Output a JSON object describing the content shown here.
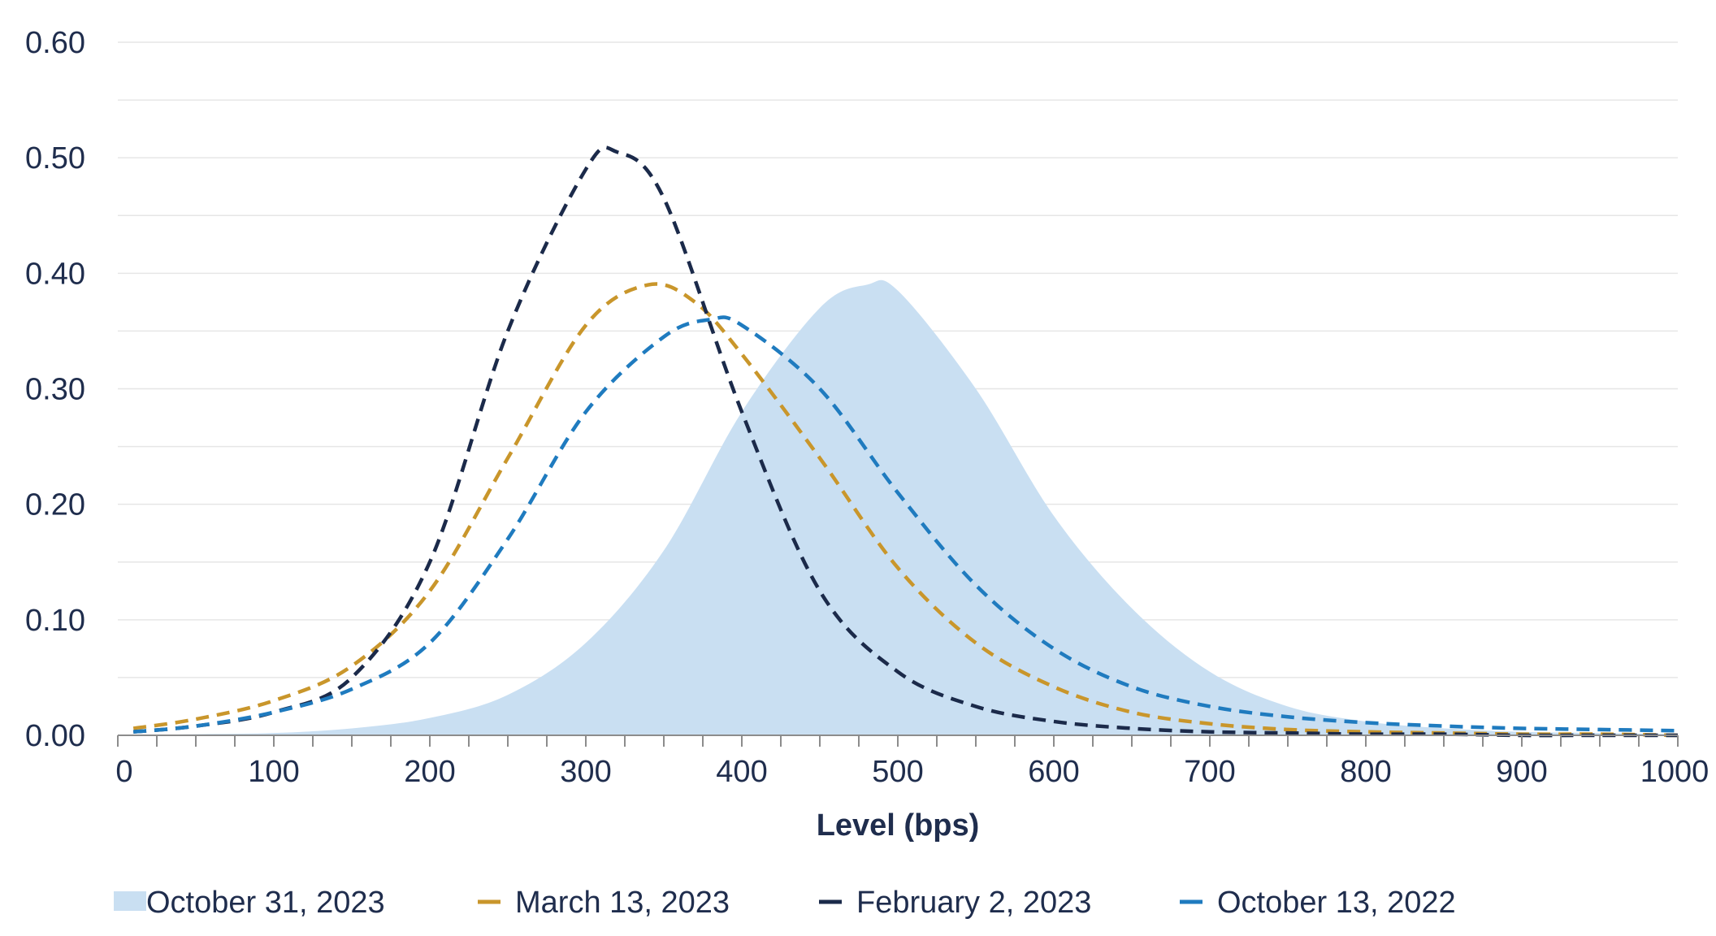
{
  "chart_data": {
    "type": "area",
    "xlabel": "Level (bps)",
    "ylabel": "",
    "xlim": [
      0,
      1000
    ],
    "ylim": [
      0,
      0.6
    ],
    "x_ticks": [
      "0",
      "100",
      "200",
      "300",
      "400",
      "500",
      "600",
      "700",
      "800",
      "900",
      "1000"
    ],
    "y_ticks": [
      "0.00",
      "0.10",
      "0.20",
      "0.30",
      "0.40",
      "0.50",
      "0.60"
    ],
    "grid": true,
    "legend_position": "bottom",
    "series": [
      {
        "name": "October 31, 2023",
        "style": "filled-area",
        "color": "#c9dff2",
        "x": [
          10,
          50,
          100,
          150,
          200,
          250,
          300,
          350,
          400,
          450,
          480,
          500,
          550,
          600,
          650,
          700,
          750,
          800,
          850,
          900,
          950,
          1000
        ],
        "values": [
          0.0,
          0.001,
          0.002,
          0.006,
          0.015,
          0.035,
          0.08,
          0.16,
          0.28,
          0.37,
          0.39,
          0.385,
          0.3,
          0.19,
          0.11,
          0.055,
          0.025,
          0.012,
          0.006,
          0.003,
          0.002,
          0.001
        ]
      },
      {
        "name": "March 13, 2023",
        "style": "dashed",
        "color": "#c9962b",
        "x": [
          10,
          50,
          100,
          150,
          200,
          250,
          300,
          340,
          370,
          400,
          450,
          500,
          550,
          600,
          650,
          700,
          750,
          800,
          850,
          900,
          950,
          1000
        ],
        "values": [
          0.006,
          0.014,
          0.03,
          0.06,
          0.125,
          0.24,
          0.355,
          0.39,
          0.375,
          0.33,
          0.24,
          0.145,
          0.08,
          0.042,
          0.02,
          0.01,
          0.005,
          0.003,
          0.002,
          0.001,
          0.001,
          0.0
        ]
      },
      {
        "name": "February 2, 2023",
        "style": "dashed",
        "color": "#1b2a4a",
        "x": [
          10,
          50,
          100,
          150,
          200,
          250,
          300,
          320,
          350,
          400,
          450,
          500,
          550,
          600,
          650,
          700,
          750,
          800,
          850,
          900,
          950,
          1000
        ],
        "values": [
          0.003,
          0.008,
          0.02,
          0.05,
          0.15,
          0.35,
          0.49,
          0.505,
          0.465,
          0.28,
          0.125,
          0.055,
          0.025,
          0.012,
          0.006,
          0.003,
          0.002,
          0.001,
          0.001,
          0.0,
          0.0,
          0.0
        ]
      },
      {
        "name": "October 13, 2022",
        "style": "dashed",
        "color": "#1f7bbf",
        "x": [
          10,
          50,
          100,
          150,
          200,
          250,
          300,
          350,
          380,
          400,
          450,
          500,
          550,
          600,
          650,
          700,
          750,
          800,
          850,
          900,
          950,
          1000
        ],
        "values": [
          0.003,
          0.008,
          0.02,
          0.04,
          0.08,
          0.17,
          0.28,
          0.345,
          0.36,
          0.355,
          0.3,
          0.21,
          0.13,
          0.075,
          0.042,
          0.025,
          0.016,
          0.011,
          0.008,
          0.006,
          0.005,
          0.004
        ]
      }
    ]
  }
}
